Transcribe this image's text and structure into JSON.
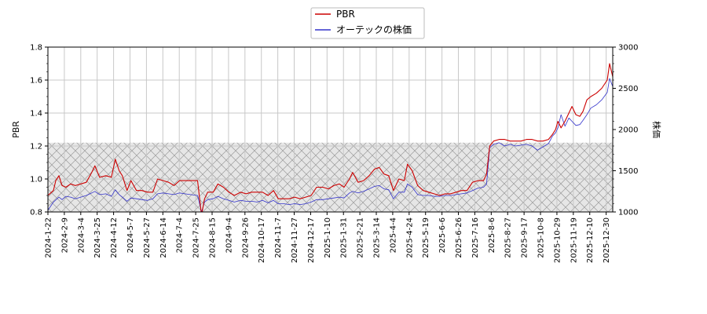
{
  "chart_data": {
    "type": "line",
    "legend_position": "top-center",
    "grid": true,
    "series": [
      {
        "name": "PBR",
        "axis": "left",
        "color": "#cc0000",
        "points": [
          [
            "2024-01-22",
            0.9
          ],
          [
            "2024-01-29",
            0.93
          ],
          [
            "2024-02-01",
            0.99
          ],
          [
            "2024-02-05",
            1.02
          ],
          [
            "2024-02-09",
            0.96
          ],
          [
            "2024-02-14",
            0.95
          ],
          [
            "2024-02-20",
            0.97
          ],
          [
            "2024-02-26",
            0.96
          ],
          [
            "2024-03-04",
            0.97
          ],
          [
            "2024-03-11",
            0.98
          ],
          [
            "2024-03-18",
            1.04
          ],
          [
            "2024-03-22",
            1.08
          ],
          [
            "2024-03-28",
            1.01
          ],
          [
            "2024-04-05",
            1.02
          ],
          [
            "2024-04-12",
            1.01
          ],
          [
            "2024-04-17",
            1.12
          ],
          [
            "2024-04-22",
            1.05
          ],
          [
            "2024-04-26",
            1.02
          ],
          [
            "2024-05-02",
            0.93
          ],
          [
            "2024-05-07",
            0.99
          ],
          [
            "2024-05-14",
            0.93
          ],
          [
            "2024-05-21",
            0.93
          ],
          [
            "2024-05-28",
            0.92
          ],
          [
            "2024-06-04",
            0.92
          ],
          [
            "2024-06-10",
            1.0
          ],
          [
            "2024-06-17",
            0.99
          ],
          [
            "2024-06-24",
            0.98
          ],
          [
            "2024-07-01",
            0.96
          ],
          [
            "2024-07-08",
            0.99
          ],
          [
            "2024-07-15",
            0.99
          ],
          [
            "2024-07-22",
            0.99
          ],
          [
            "2024-07-31",
            0.99
          ],
          [
            "2024-08-05",
            0.78
          ],
          [
            "2024-08-09",
            0.88
          ],
          [
            "2024-08-13",
            0.92
          ],
          [
            "2024-08-20",
            0.92
          ],
          [
            "2024-08-26",
            0.97
          ],
          [
            "2024-09-02",
            0.95
          ],
          [
            "2024-09-09",
            0.92
          ],
          [
            "2024-09-16",
            0.9
          ],
          [
            "2024-09-24",
            0.92
          ],
          [
            "2024-10-01",
            0.91
          ],
          [
            "2024-10-08",
            0.92
          ],
          [
            "2024-10-15",
            0.92
          ],
          [
            "2024-10-22",
            0.92
          ],
          [
            "2024-10-29",
            0.9
          ],
          [
            "2024-11-05",
            0.93
          ],
          [
            "2024-11-11",
            0.88
          ],
          [
            "2024-11-18",
            0.88
          ],
          [
            "2024-11-25",
            0.88
          ],
          [
            "2024-12-02",
            0.89
          ],
          [
            "2024-12-09",
            0.88
          ],
          [
            "2024-12-16",
            0.89
          ],
          [
            "2024-12-23",
            0.9
          ],
          [
            "2024-12-30",
            0.95
          ],
          [
            "2025-01-07",
            0.95
          ],
          [
            "2025-01-14",
            0.94
          ],
          [
            "2025-01-21",
            0.96
          ],
          [
            "2025-01-28",
            0.97
          ],
          [
            "2025-02-03",
            0.95
          ],
          [
            "2025-02-10",
            1.0
          ],
          [
            "2025-02-14",
            1.04
          ],
          [
            "2025-02-21",
            0.98
          ],
          [
            "2025-02-28",
            0.99
          ],
          [
            "2025-03-07",
            1.02
          ],
          [
            "2025-03-14",
            1.06
          ],
          [
            "2025-03-20",
            1.07
          ],
          [
            "2025-03-26",
            1.03
          ],
          [
            "2025-04-01",
            1.02
          ],
          [
            "2025-04-07",
            0.93
          ],
          [
            "2025-04-14",
            1.0
          ],
          [
            "2025-04-21",
            0.99
          ],
          [
            "2025-04-25",
            1.09
          ],
          [
            "2025-05-01",
            1.05
          ],
          [
            "2025-05-08",
            0.96
          ],
          [
            "2025-05-15",
            0.93
          ],
          [
            "2025-05-22",
            0.92
          ],
          [
            "2025-05-29",
            0.91
          ],
          [
            "2025-06-05",
            0.9
          ],
          [
            "2025-06-12",
            0.91
          ],
          [
            "2025-06-19",
            0.91
          ],
          [
            "2025-06-26",
            0.92
          ],
          [
            "2025-07-03",
            0.93
          ],
          [
            "2025-07-10",
            0.93
          ],
          [
            "2025-07-17",
            0.98
          ],
          [
            "2025-07-24",
            0.99
          ],
          [
            "2025-07-31",
            0.99
          ],
          [
            "2025-08-04",
            1.03
          ],
          [
            "2025-08-08",
            1.2
          ],
          [
            "2025-08-13",
            1.23
          ],
          [
            "2025-08-20",
            1.24
          ],
          [
            "2025-08-27",
            1.24
          ],
          [
            "2025-09-03",
            1.23
          ],
          [
            "2025-09-10",
            1.23
          ],
          [
            "2025-09-17",
            1.23
          ],
          [
            "2025-09-24",
            1.24
          ],
          [
            "2025-10-01",
            1.24
          ],
          [
            "2025-10-08",
            1.23
          ],
          [
            "2025-10-15",
            1.23
          ],
          [
            "2025-10-22",
            1.24
          ],
          [
            "2025-10-27",
            1.27
          ],
          [
            "2025-10-31",
            1.3
          ],
          [
            "2025-11-03",
            1.35
          ],
          [
            "2025-11-07",
            1.31
          ],
          [
            "2025-11-12",
            1.35
          ],
          [
            "2025-11-17",
            1.4
          ],
          [
            "2025-11-21",
            1.44
          ],
          [
            "2025-11-26",
            1.39
          ],
          [
            "2025-12-01",
            1.38
          ],
          [
            "2025-12-05",
            1.41
          ],
          [
            "2025-12-10",
            1.48
          ],
          [
            "2025-12-15",
            1.5
          ],
          [
            "2025-12-22",
            1.52
          ],
          [
            "2025-12-29",
            1.55
          ],
          [
            "2026-01-05",
            1.6
          ],
          [
            "2026-01-08",
            1.7
          ],
          [
            "2026-01-12",
            1.62
          ]
        ]
      },
      {
        "name": "オーテックの株価",
        "axis": "right",
        "color": "#3333cc",
        "points": [
          [
            "2024-01-22",
            1020
          ],
          [
            "2024-01-29",
            1120
          ],
          [
            "2024-02-05",
            1180
          ],
          [
            "2024-02-09",
            1150
          ],
          [
            "2024-02-14",
            1190
          ],
          [
            "2024-02-20",
            1180
          ],
          [
            "2024-02-26",
            1160
          ],
          [
            "2024-03-04",
            1180
          ],
          [
            "2024-03-11",
            1200
          ],
          [
            "2024-03-18",
            1230
          ],
          [
            "2024-03-22",
            1250
          ],
          [
            "2024-03-28",
            1210
          ],
          [
            "2024-04-05",
            1220
          ],
          [
            "2024-04-12",
            1190
          ],
          [
            "2024-04-17",
            1270
          ],
          [
            "2024-04-22",
            1210
          ],
          [
            "2024-04-26",
            1180
          ],
          [
            "2024-05-02",
            1130
          ],
          [
            "2024-05-07",
            1170
          ],
          [
            "2024-05-14",
            1160
          ],
          [
            "2024-05-21",
            1150
          ],
          [
            "2024-05-28",
            1140
          ],
          [
            "2024-06-04",
            1160
          ],
          [
            "2024-06-10",
            1220
          ],
          [
            "2024-06-17",
            1230
          ],
          [
            "2024-06-24",
            1220
          ],
          [
            "2024-07-01",
            1210
          ],
          [
            "2024-07-08",
            1230
          ],
          [
            "2024-07-15",
            1220
          ],
          [
            "2024-07-22",
            1210
          ],
          [
            "2024-07-31",
            1200
          ],
          [
            "2024-08-05",
            1000
          ],
          [
            "2024-08-09",
            1120
          ],
          [
            "2024-08-13",
            1150
          ],
          [
            "2024-08-20",
            1160
          ],
          [
            "2024-08-26",
            1190
          ],
          [
            "2024-09-02",
            1160
          ],
          [
            "2024-09-09",
            1140
          ],
          [
            "2024-09-16",
            1120
          ],
          [
            "2024-09-24",
            1140
          ],
          [
            "2024-10-01",
            1130
          ],
          [
            "2024-10-08",
            1130
          ],
          [
            "2024-10-15",
            1120
          ],
          [
            "2024-10-22",
            1140
          ],
          [
            "2024-10-29",
            1110
          ],
          [
            "2024-11-05",
            1140
          ],
          [
            "2024-11-11",
            1100
          ],
          [
            "2024-11-18",
            1100
          ],
          [
            "2024-11-25",
            1090
          ],
          [
            "2024-12-02",
            1100
          ],
          [
            "2024-12-09",
            1090
          ],
          [
            "2024-12-16",
            1100
          ],
          [
            "2024-12-23",
            1120
          ],
          [
            "2024-12-30",
            1150
          ],
          [
            "2025-01-07",
            1150
          ],
          [
            "2025-01-14",
            1160
          ],
          [
            "2025-01-21",
            1170
          ],
          [
            "2025-01-28",
            1180
          ],
          [
            "2025-02-03",
            1170
          ],
          [
            "2025-02-10",
            1230
          ],
          [
            "2025-02-14",
            1250
          ],
          [
            "2025-02-21",
            1230
          ],
          [
            "2025-02-28",
            1250
          ],
          [
            "2025-03-07",
            1280
          ],
          [
            "2025-03-14",
            1310
          ],
          [
            "2025-03-20",
            1320
          ],
          [
            "2025-03-26",
            1280
          ],
          [
            "2025-04-01",
            1270
          ],
          [
            "2025-04-07",
            1160
          ],
          [
            "2025-04-14",
            1240
          ],
          [
            "2025-04-21",
            1240
          ],
          [
            "2025-04-25",
            1340
          ],
          [
            "2025-05-01",
            1300
          ],
          [
            "2025-05-08",
            1210
          ],
          [
            "2025-05-15",
            1200
          ],
          [
            "2025-05-22",
            1200
          ],
          [
            "2025-05-29",
            1190
          ],
          [
            "2025-06-05",
            1190
          ],
          [
            "2025-06-12",
            1200
          ],
          [
            "2025-06-19",
            1200
          ],
          [
            "2025-06-26",
            1210
          ],
          [
            "2025-07-03",
            1220
          ],
          [
            "2025-07-10",
            1230
          ],
          [
            "2025-07-17",
            1260
          ],
          [
            "2025-07-24",
            1290
          ],
          [
            "2025-07-31",
            1300
          ],
          [
            "2025-08-04",
            1340
          ],
          [
            "2025-08-08",
            1780
          ],
          [
            "2025-08-13",
            1820
          ],
          [
            "2025-08-20",
            1840
          ],
          [
            "2025-08-27",
            1800
          ],
          [
            "2025-09-03",
            1820
          ],
          [
            "2025-09-10",
            1800
          ],
          [
            "2025-09-17",
            1810
          ],
          [
            "2025-09-24",
            1820
          ],
          [
            "2025-10-01",
            1800
          ],
          [
            "2025-10-08",
            1750
          ],
          [
            "2025-10-15",
            1790
          ],
          [
            "2025-10-22",
            1830
          ],
          [
            "2025-10-27",
            1920
          ],
          [
            "2025-10-31",
            1960
          ],
          [
            "2025-11-03",
            2020
          ],
          [
            "2025-11-07",
            2180
          ],
          [
            "2025-11-12",
            2040
          ],
          [
            "2025-11-17",
            2140
          ],
          [
            "2025-11-21",
            2100
          ],
          [
            "2025-11-26",
            2050
          ],
          [
            "2025-12-01",
            2060
          ],
          [
            "2025-12-05",
            2110
          ],
          [
            "2025-12-10",
            2180
          ],
          [
            "2025-12-15",
            2260
          ],
          [
            "2025-12-22",
            2300
          ],
          [
            "2025-12-29",
            2360
          ],
          [
            "2026-01-05",
            2450
          ],
          [
            "2026-01-08",
            2620
          ],
          [
            "2026-01-12",
            2520
          ]
        ]
      }
    ],
    "x_range": [
      "2024-01-22",
      "2026-01-12"
    ],
    "x_tick_labels": [
      "2024-1-22",
      "2024-2-9",
      "2024-3-4",
      "2024-3-25",
      "2024-4-12",
      "2024-5-7",
      "2024-5-27",
      "2024-6-14",
      "2024-7-4",
      "2024-7-25",
      "2024-8-15",
      "2024-9-4",
      "2024-9-26",
      "2024-10-17",
      "2024-11-7",
      "2024-11-27",
      "2024-12-17",
      "2025-1-10",
      "2025-1-31",
      "2025-2-21",
      "2025-3-14",
      "2025-4-4",
      "2025-4-24",
      "2025-5-19",
      "2025-6-6",
      "2025-6-26",
      "2025-7-16",
      "2025-8-6",
      "2025-8-27",
      "2025-9-17",
      "2025-10-8",
      "2025-10-29",
      "2025-11-19",
      "2025-12-10",
      "2025-12-30"
    ],
    "y_left": {
      "label": "PBR",
      "lim": [
        0.8,
        1.8
      ],
      "ticks": [
        "0.8",
        "1.0",
        "1.2",
        "1.4",
        "1.6",
        "1.8"
      ],
      "tick_values": [
        0.8,
        1.0,
        1.2,
        1.4,
        1.6,
        1.8
      ]
    },
    "y_right": {
      "label": "株価",
      "lim": [
        1000,
        3000
      ],
      "ticks": [
        "1000",
        "1500",
        "2000",
        "2500",
        "3000"
      ],
      "tick_values": [
        1000,
        1500,
        2000,
        2500,
        3000
      ]
    },
    "shaded_band": {
      "axis": "left",
      "from": 0.8,
      "to": 1.22
    }
  }
}
